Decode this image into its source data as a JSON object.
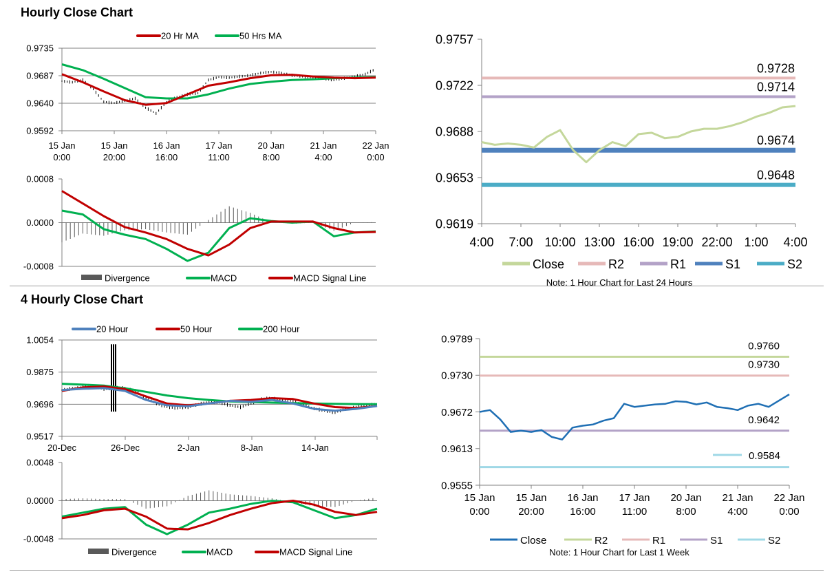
{
  "sections": {
    "hourly_title": "Hourly Close Chart",
    "four_hourly_title": "4 Hourly Close Chart"
  },
  "chart_data": [
    {
      "id": "h_price",
      "type": "line",
      "title": "",
      "legend": [
        "20 Hr MA",
        "50 Hrs MA"
      ],
      "ylim": [
        0.9592,
        0.9735
      ],
      "yticks": [
        "0.9735",
        "0.9687",
        "0.9640",
        "0.9592"
      ],
      "xticks": [
        [
          "15 Jan",
          "0:00"
        ],
        [
          "15 Jan",
          "20:00"
        ],
        [
          "16 Jan",
          "16:00"
        ],
        [
          "17 Jan",
          "11:00"
        ],
        [
          "20 Jan",
          "8:00"
        ],
        [
          "21 Jan",
          "4:00"
        ],
        [
          "22 Jan",
          "0:00"
        ]
      ],
      "colors": {
        "ma20": "#c00000",
        "ma50": "#00b050",
        "price": "#000000"
      },
      "series": [
        {
          "name": "20 Hr MA",
          "x": [
            0,
            2,
            4,
            6,
            8,
            10,
            12,
            14,
            16,
            18,
            20,
            22,
            24,
            26,
            28,
            30
          ],
          "values": [
            0.969,
            0.9676,
            0.966,
            0.9645,
            0.9637,
            0.964,
            0.9655,
            0.967,
            0.9676,
            0.9683,
            0.9688,
            0.9689,
            0.9686,
            0.9684,
            0.9683,
            0.9684
          ]
        },
        {
          "name": "50 Hrs MA",
          "x": [
            0,
            2,
            4,
            6,
            8,
            10,
            12,
            14,
            16,
            18,
            20,
            22,
            24,
            26,
            28,
            30
          ],
          "values": [
            0.9707,
            0.9697,
            0.9682,
            0.9666,
            0.965,
            0.9648,
            0.9648,
            0.9655,
            0.9665,
            0.9673,
            0.9677,
            0.968,
            0.9681,
            0.9683,
            0.9684,
            0.9685
          ]
        },
        {
          "name": "Close",
          "x": [
            0,
            1,
            2,
            3,
            4,
            5,
            6,
            7,
            8,
            9,
            10,
            11,
            12,
            13,
            14,
            15,
            16,
            17,
            18,
            19,
            20,
            21,
            22,
            23,
            24,
            25,
            26,
            27,
            28,
            29,
            30
          ],
          "values": [
            0.9678,
            0.9676,
            0.968,
            0.9664,
            0.9642,
            0.964,
            0.9644,
            0.9648,
            0.9632,
            0.9622,
            0.9642,
            0.965,
            0.9655,
            0.9657,
            0.968,
            0.9685,
            0.9684,
            0.9686,
            0.9688,
            0.9692,
            0.9694,
            0.9692,
            0.9688,
            0.9686,
            0.9684,
            0.9682,
            0.968,
            0.9683,
            0.9686,
            0.969,
            0.9699
          ]
        }
      ]
    },
    {
      "id": "h_macd",
      "type": "line",
      "legend": [
        "Divergence",
        "MACD",
        "MACD Signal Line"
      ],
      "ylim": [
        -0.0008,
        0.0008
      ],
      "yticks": [
        "0.0008",
        "0.0000",
        "-0.0008"
      ],
      "colors": {
        "macd": "#00b050",
        "signal": "#c00000",
        "div": "#595959"
      },
      "series": [
        {
          "name": "MACD",
          "x": [
            0,
            2,
            4,
            6,
            8,
            10,
            12,
            14,
            16,
            18,
            20,
            22,
            24,
            26,
            28,
            30
          ],
          "values": [
            0.00022,
            0.00015,
            -0.00012,
            -0.00022,
            -0.0003,
            -0.00048,
            -0.0007,
            -0.00055,
            -0.0001,
            8e-05,
            3e-05,
            0.0,
            2e-05,
            -0.00025,
            -0.00018,
            -0.00016
          ]
        },
        {
          "name": "MACD Signal Line",
          "x": [
            0,
            2,
            4,
            6,
            8,
            10,
            12,
            14,
            16,
            18,
            20,
            22,
            24,
            26,
            28,
            30
          ],
          "values": [
            0.00058,
            0.00035,
            0.00012,
            -8e-05,
            -0.00018,
            -0.0003,
            -0.00048,
            -0.0006,
            -0.0004,
            -0.0001,
            2e-05,
            2e-05,
            2e-05,
            -0.0001,
            -0.00018,
            -0.00017
          ]
        },
        {
          "name": "Divergence",
          "x": [
            0,
            2,
            4,
            6,
            8,
            10,
            12,
            14,
            16,
            18,
            20,
            22,
            24,
            26,
            28,
            30
          ],
          "values": [
            -0.00036,
            -0.0002,
            -0.00024,
            -0.00014,
            -0.00012,
            -0.00018,
            -0.00022,
            5e-05,
            0.0003,
            0.00018,
            1e-05,
            -2e-05,
            0.0,
            -0.00015,
            0.0,
            1e-05
          ]
        }
      ]
    },
    {
      "id": "h_levels",
      "type": "line",
      "note": "Note: 1 Hour Chart for Last 24 Hours",
      "ylim": [
        0.9619,
        0.9757
      ],
      "yticks": [
        "0.9757",
        "0.9722",
        "0.9688",
        "0.9653",
        "0.9619"
      ],
      "xticks": [
        "4:00",
        "7:00",
        "10:00",
        "13:00",
        "16:00",
        "19:00",
        "22:00",
        "1:00",
        "4:00"
      ],
      "legend": [
        "Close",
        "R2",
        "R1",
        "S1",
        "S2"
      ],
      "colors": {
        "close": "#c4d79b",
        "r2": "#e6b9b8",
        "r1": "#b3a2c7",
        "s1": "#4f81bd",
        "s2": "#4bacc6"
      },
      "levels": [
        {
          "name": "R2",
          "value": 0.9728,
          "label": "0.9728"
        },
        {
          "name": "R1",
          "value": 0.9714,
          "label": "0.9714"
        },
        {
          "name": "S1",
          "value": 0.9674,
          "label": "0.9674"
        },
        {
          "name": "S2",
          "value": 0.9648,
          "label": "0.9648"
        }
      ],
      "series": [
        {
          "name": "Close",
          "x": [
            0,
            1,
            2,
            3,
            4,
            5,
            6,
            7,
            8,
            9,
            10,
            11,
            12,
            13,
            14,
            15,
            16,
            17,
            18,
            19,
            20,
            21,
            22,
            23,
            24
          ],
          "values": [
            0.968,
            0.9678,
            0.9679,
            0.9678,
            0.9676,
            0.9684,
            0.9689,
            0.9674,
            0.9665,
            0.9674,
            0.968,
            0.9677,
            0.9686,
            0.9687,
            0.9683,
            0.9684,
            0.9688,
            0.969,
            0.969,
            0.9692,
            0.9695,
            0.9699,
            0.9702,
            0.9706,
            0.9707
          ]
        }
      ]
    },
    {
      "id": "q_price",
      "type": "line",
      "legend": [
        "20 Hour",
        "50 Hour",
        "200 Hour"
      ],
      "ylim": [
        0.9517,
        1.0054
      ],
      "yticks": [
        "1.0054",
        "0.9875",
        "0.9696",
        "0.9517"
      ],
      "xticks": [
        "20-Dec",
        "26-Dec",
        "2-Jan",
        "8-Jan",
        "14-Jan"
      ],
      "colors": {
        "h20": "#4f81bd",
        "h50": "#c00000",
        "h200": "#00b050",
        "price": "#000000"
      },
      "series": [
        {
          "name": "20 Hour",
          "x": [
            0,
            2,
            4,
            6,
            8,
            10,
            12,
            14,
            16,
            18,
            20,
            22,
            24,
            26,
            28,
            30
          ],
          "values": [
            0.9775,
            0.9782,
            0.9786,
            0.977,
            0.972,
            0.969,
            0.9685,
            0.97,
            0.9715,
            0.971,
            0.972,
            0.97,
            0.967,
            0.966,
            0.967,
            0.9686
          ]
        },
        {
          "name": "50 Hour",
          "x": [
            0,
            2,
            4,
            6,
            8,
            10,
            12,
            14,
            16,
            18,
            20,
            22,
            24,
            26,
            28,
            30
          ],
          "values": [
            0.977,
            0.979,
            0.9795,
            0.978,
            0.974,
            0.97,
            0.969,
            0.97,
            0.9715,
            0.972,
            0.973,
            0.9725,
            0.97,
            0.968,
            0.9675,
            0.9686
          ]
        },
        {
          "name": "200 Hour",
          "x": [
            0,
            2,
            4,
            6,
            8,
            10,
            12,
            14,
            16,
            18,
            20,
            22,
            24,
            26,
            28,
            30
          ],
          "values": [
            0.981,
            0.9805,
            0.98,
            0.9785,
            0.9765,
            0.9745,
            0.973,
            0.972,
            0.9712,
            0.9708,
            0.9705,
            0.9702,
            0.97,
            0.9698,
            0.9697,
            0.9696
          ]
        },
        {
          "name": "Close",
          "x": [
            0,
            1,
            2,
            3,
            4,
            5,
            6,
            7,
            8,
            9,
            10,
            11,
            12,
            13,
            14,
            15,
            16,
            17,
            18,
            19,
            20,
            21,
            22,
            23,
            24,
            25,
            26,
            27,
            28,
            29,
            30
          ],
          "values": [
            0.9775,
            0.9784,
            0.979,
            0.9795,
            0.978,
            0.979,
            0.9785,
            0.977,
            0.973,
            0.97,
            0.968,
            0.9675,
            0.968,
            0.9695,
            0.971,
            0.9705,
            0.969,
            0.968,
            0.97,
            0.9725,
            0.973,
            0.972,
            0.9715,
            0.969,
            0.9672,
            0.966,
            0.965,
            0.967,
            0.968,
            0.969,
            0.9696
          ]
        }
      ]
    },
    {
      "id": "q_macd",
      "type": "line",
      "legend": [
        "Divergence",
        "MACD",
        "MACD Signal Line"
      ],
      "ylim": [
        -0.0048,
        0.0048
      ],
      "yticks": [
        "0.0048",
        "0.0000",
        "-0.0048"
      ],
      "colors": {
        "macd": "#00b050",
        "signal": "#c00000",
        "div": "#595959"
      },
      "series": [
        {
          "name": "MACD",
          "x": [
            0,
            2,
            4,
            6,
            8,
            10,
            12,
            14,
            16,
            18,
            20,
            22,
            24,
            26,
            28,
            30
          ],
          "values": [
            -0.002,
            -0.0015,
            -0.001,
            -0.0008,
            -0.003,
            -0.0042,
            -0.003,
            -0.0015,
            -0.001,
            -0.0004,
            0.0,
            -0.0002,
            -0.0012,
            -0.0022,
            -0.0018,
            -0.001
          ]
        },
        {
          "name": "MACD Signal Line",
          "x": [
            0,
            2,
            4,
            6,
            8,
            10,
            12,
            14,
            16,
            18,
            20,
            22,
            24,
            26,
            28,
            30
          ],
          "values": [
            -0.0022,
            -0.0018,
            -0.0012,
            -0.001,
            -0.002,
            -0.0035,
            -0.0036,
            -0.0028,
            -0.0018,
            -0.001,
            -0.0003,
            0.0,
            -0.0005,
            -0.0014,
            -0.0018,
            -0.0014
          ]
        },
        {
          "name": "Divergence",
          "x": [
            0,
            2,
            4,
            6,
            8,
            10,
            12,
            14,
            16,
            18,
            20,
            22,
            24,
            26,
            28,
            30
          ],
          "values": [
            0.0002,
            0.0003,
            0.0002,
            0.0002,
            -0.001,
            -0.0007,
            0.0006,
            0.0013,
            0.0008,
            0.0006,
            0.0003,
            -0.0002,
            -0.0007,
            -0.0008,
            0.0,
            0.0004
          ]
        }
      ]
    },
    {
      "id": "q_levels",
      "type": "line",
      "note": "Note: 1 Hour Chart for Last 1 Week",
      "ylim": [
        0.9555,
        0.9789
      ],
      "yticks": [
        "0.9789",
        "0.9730",
        "0.9672",
        "0.9613",
        "0.9555"
      ],
      "xticks": [
        [
          "15 Jan",
          "0:00"
        ],
        [
          "15 Jan",
          "20:00"
        ],
        [
          "16 Jan",
          "16:00"
        ],
        [
          "17 Jan",
          "11:00"
        ],
        [
          "20 Jan",
          "8:00"
        ],
        [
          "21 Jan",
          "4:00"
        ],
        [
          "22 Jan",
          "0:00"
        ]
      ],
      "legend": [
        "Close",
        "R2",
        "R1",
        "S1",
        "S2"
      ],
      "colors": {
        "close": "#1f6fb4",
        "r2": "#c4d79b",
        "r1": "#e6b9b8",
        "s1": "#b3a2c7",
        "s2": "#9fd8e6"
      },
      "levels": [
        {
          "name": "R2",
          "value": 0.976,
          "label": "0.9760"
        },
        {
          "name": "R1",
          "value": 0.973,
          "label": "0.9730"
        },
        {
          "name": "S1",
          "value": 0.9642,
          "label": "0.9642"
        },
        {
          "name": "S2",
          "value": 0.9584,
          "label": "0.9584"
        }
      ],
      "series": [
        {
          "name": "Close",
          "x": [
            0,
            1,
            2,
            3,
            4,
            5,
            6,
            7,
            8,
            9,
            10,
            11,
            12,
            13,
            14,
            15,
            16,
            17,
            18,
            19,
            20,
            21,
            22,
            23,
            24,
            25,
            26,
            27,
            28,
            29,
            30
          ],
          "values": [
            0.9672,
            0.9675,
            0.966,
            0.964,
            0.9642,
            0.964,
            0.9643,
            0.9632,
            0.9628,
            0.9647,
            0.965,
            0.9652,
            0.9658,
            0.9662,
            0.9685,
            0.968,
            0.9682,
            0.9684,
            0.9685,
            0.9689,
            0.9688,
            0.9684,
            0.9687,
            0.968,
            0.9678,
            0.9675,
            0.9682,
            0.9685,
            0.968,
            0.969,
            0.97
          ]
        }
      ]
    }
  ]
}
